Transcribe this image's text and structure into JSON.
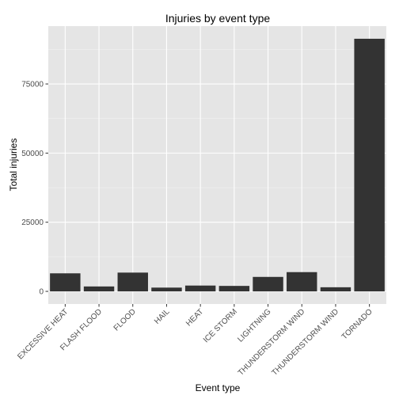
{
  "chart_data": {
    "type": "bar",
    "title": "Injuries by event type",
    "xlabel": "Event type",
    "ylabel": "Total injuries",
    "categories": [
      "EXCESSIVE HEAT",
      "FLASH FLOOD",
      "FLOOD",
      "HAIL",
      "HEAT",
      "ICE STORM",
      "LIGHTNING",
      "THUNDERSTORM WIND",
      "THUNDERSTORM WIND",
      "TORNADO"
    ],
    "values": [
      6525,
      1777,
      6789,
      1361,
      2100,
      1975,
      5230,
      6957,
      1488,
      91346
    ],
    "ylim": [
      -4567,
      95913
    ],
    "yticks": [
      0,
      25000,
      50000,
      75000
    ],
    "ytick_labels": [
      "0",
      "25000",
      "50000",
      "75000"
    ],
    "grid": true,
    "legend": "none",
    "colors": {
      "bar": "#333333",
      "panel": "#e5e5e5",
      "grid_major": "#ffffff",
      "grid_minor": "#f2f2f2",
      "tick_text": "#4d4d4d"
    }
  }
}
